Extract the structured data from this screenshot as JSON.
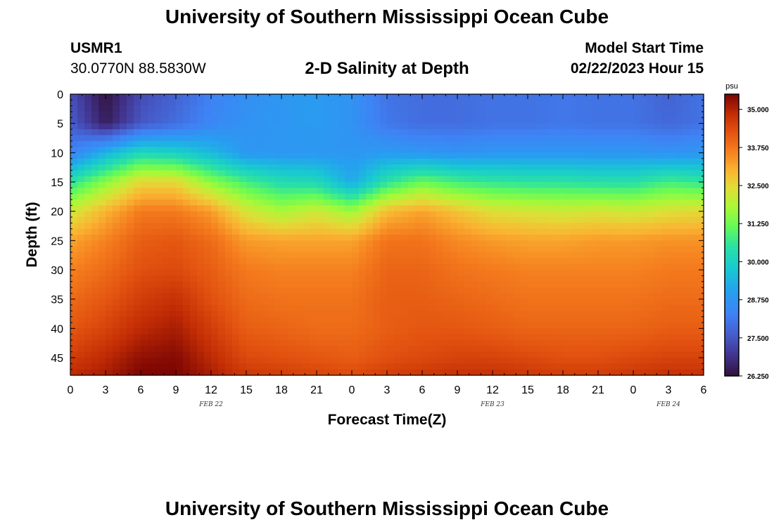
{
  "header": {
    "title": "University of Southern Mississippi Ocean Cube",
    "station_id": "USMR1",
    "coordinates": "30.0770N  88.5830W",
    "subtitle": "2-D Salinity at Depth",
    "model_start_label": "Model Start Time",
    "model_start_value": "02/22/2023 Hour 15"
  },
  "footer": {
    "title": "University of Southern Mississippi Ocean Cube"
  },
  "chart_data": {
    "type": "heatmap",
    "title": "2-D Salinity at Depth",
    "xlabel": "Forecast Time(Z)",
    "ylabel": "Depth (ft)",
    "x_range_hours": [
      0,
      54
    ],
    "y_range_ft": [
      0,
      48
    ],
    "x_ticks": [
      "0",
      "3",
      "6",
      "9",
      "12",
      "15",
      "18",
      "21",
      "0",
      "3",
      "6",
      "9",
      "12",
      "15",
      "18",
      "21",
      "0",
      "3",
      "6"
    ],
    "date_labels": [
      {
        "label": "FEB 22",
        "hour": 12
      },
      {
        "label": "FEB 23",
        "hour": 36
      },
      {
        "label": "FEB 24",
        "hour": 51
      }
    ],
    "y_ticks": [
      0,
      5,
      10,
      15,
      20,
      25,
      30,
      35,
      40,
      45
    ],
    "colorbar": {
      "unit": "psu",
      "min": 26.25,
      "max": 35.5,
      "tick_labels": [
        "35.000",
        "33.750",
        "32.500",
        "31.250",
        "30.000",
        "28.750",
        "27.500",
        "26.250"
      ],
      "tick_values": [
        35.0,
        33.75,
        32.5,
        31.25,
        30.0,
        28.75,
        27.5,
        26.25
      ]
    },
    "field": {
      "hours": [
        0,
        3,
        6,
        9,
        12,
        15,
        18,
        21,
        24,
        27,
        30,
        33,
        36,
        39,
        42,
        45,
        48,
        51,
        54
      ],
      "depths_ft": [
        0,
        5,
        10,
        15,
        20,
        25,
        30,
        35,
        40,
        45,
        48
      ],
      "salinity_psu": [
        [
          27.4,
          26.3,
          27.3,
          27.7,
          28.3,
          28.6,
          28.8,
          28.9,
          28.7,
          28.0,
          27.9,
          27.9,
          28.0,
          28.0,
          28.1,
          28.0,
          28.0,
          27.7,
          28.0
        ],
        [
          27.6,
          26.5,
          27.5,
          27.9,
          28.4,
          28.7,
          28.8,
          28.9,
          28.7,
          28.1,
          27.9,
          27.9,
          28.0,
          28.0,
          28.1,
          28.0,
          28.0,
          27.8,
          28.0
        ],
        [
          28.3,
          29.4,
          30.2,
          30.0,
          29.5,
          28.8,
          28.8,
          28.8,
          28.8,
          28.9,
          28.8,
          28.7,
          28.8,
          28.8,
          28.8,
          28.8,
          28.8,
          28.7,
          28.8
        ],
        [
          30.5,
          31.5,
          32.5,
          32.5,
          31.5,
          30.8,
          30.3,
          30.2,
          29.2,
          30.5,
          31.2,
          30.8,
          30.6,
          30.5,
          30.5,
          30.4,
          30.4,
          30.8,
          30.6
        ],
        [
          32.2,
          33.0,
          33.7,
          33.7,
          33.3,
          32.3,
          31.8,
          32.2,
          31.7,
          32.9,
          33.2,
          32.8,
          32.4,
          32.3,
          32.2,
          32.3,
          32.2,
          32.4,
          32.5
        ],
        [
          33.2,
          33.6,
          34.1,
          34.2,
          33.9,
          33.3,
          33.2,
          33.2,
          33.2,
          33.8,
          33.8,
          33.5,
          33.3,
          33.2,
          33.2,
          33.3,
          33.3,
          33.4,
          33.4
        ],
        [
          33.6,
          33.9,
          34.3,
          34.4,
          34.1,
          33.7,
          33.6,
          33.6,
          33.6,
          34.0,
          34.0,
          33.8,
          33.7,
          33.6,
          33.6,
          33.6,
          33.6,
          33.7,
          33.7
        ],
        [
          33.9,
          34.2,
          34.6,
          34.8,
          34.3,
          33.9,
          33.8,
          33.8,
          33.8,
          34.1,
          34.1,
          34.0,
          33.9,
          33.8,
          33.8,
          33.8,
          33.8,
          33.9,
          33.9
        ],
        [
          34.2,
          34.5,
          34.9,
          35.1,
          34.6,
          34.1,
          34.0,
          33.9,
          33.9,
          34.1,
          34.2,
          34.2,
          34.1,
          34.0,
          34.0,
          34.0,
          34.0,
          34.1,
          34.1
        ],
        [
          34.6,
          34.9,
          35.3,
          35.4,
          34.9,
          34.4,
          34.3,
          34.2,
          34.1,
          34.3,
          34.4,
          34.5,
          34.5,
          34.4,
          34.3,
          34.3,
          34.4,
          34.5,
          34.5
        ],
        [
          34.9,
          35.1,
          35.5,
          35.5,
          35.1,
          34.7,
          34.6,
          34.5,
          34.4,
          34.6,
          34.7,
          34.8,
          34.8,
          34.7,
          34.6,
          34.6,
          34.7,
          34.8,
          34.8
        ]
      ]
    }
  }
}
